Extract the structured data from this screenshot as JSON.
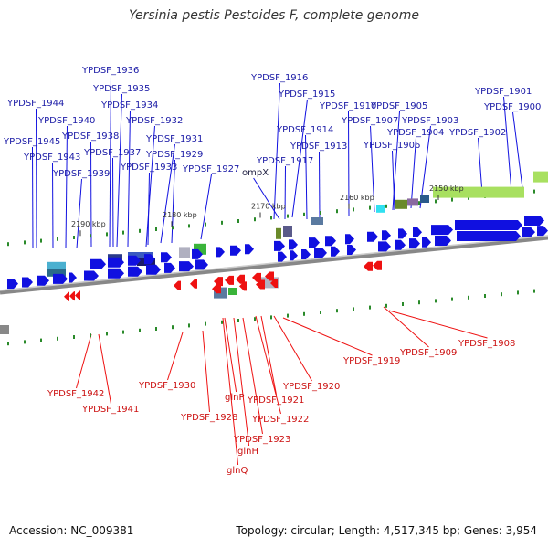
{
  "title": "Yersinia pestis Pestoides F, complete genome",
  "footer": {
    "accession": "Accession: NC_009381",
    "summary": "Topology: circular; Length: 4,517,345 bp; Genes: 3,954"
  },
  "colors": {
    "forward_gene": "#1010e0",
    "reverse_gene": "#ee1111",
    "blue_label": "#1a1aa6",
    "red_label": "#cc1111",
    "backbone": "#888888",
    "tick": "#2a8a2a"
  },
  "scale_ticks": [
    "2190 kbp",
    "2180 kbp",
    "2170 kbp",
    "2160 kbp",
    "2150 kbp"
  ],
  "forward_labels": [
    "YPDSF_1936",
    "YPDSF_1935",
    "YPDSF_1934",
    "YPDSF_1944",
    "YPDSF_1940",
    "YPDSF_1932",
    "YPDSF_1938",
    "YPDSF_1931",
    "YPDSF_1945",
    "YPDSF_1937",
    "YPDSF_1929",
    "YPDSF_1943",
    "YPDSF_1933",
    "YPDSF_1927",
    "YPDSF_1939",
    "YPDSF_1916",
    "YPDSF_1915",
    "YPDSF_1910",
    "YPDSF_1905",
    "YPDSF_1907",
    "YPDSF_1903",
    "YPDSF_1914",
    "YPDSF_1904",
    "YPDSF_1913",
    "YPDSF_1906",
    "YPDSF_1917",
    "ompX",
    "YPDSF_1901",
    "YPDSF_1900",
    "YPDSF_1902"
  ],
  "reverse_labels": [
    "YPDSF_1942",
    "YPDSF_1941",
    "YPDSF_1930",
    "YPDSF_1928",
    "glnP",
    "YPDSF_1921",
    "YPDSF_1922",
    "YPDSF_1923",
    "glnH",
    "glnQ",
    "YPDSF_1920",
    "YPDSF_1919",
    "YPDSF_1909",
    "YPDSF_1908"
  ]
}
